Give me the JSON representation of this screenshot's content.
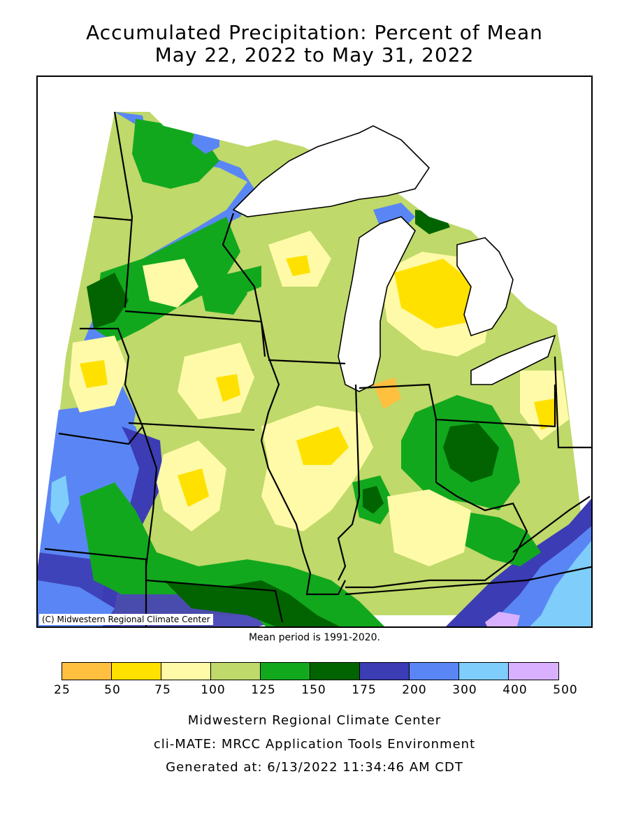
{
  "title": {
    "line1": "Accumulated Precipitation: Percent of Mean",
    "line2": "May 22, 2022 to May 31, 2022"
  },
  "map": {
    "copyright": "(C) Midwestern Regional Climate Center",
    "mean_note": "Mean period is 1991-2020."
  },
  "legend": {
    "bins": [
      {
        "from": "25",
        "to": "50",
        "color": "#ffbf3f"
      },
      {
        "from": "50",
        "to": "75",
        "color": "#ffe100"
      },
      {
        "from": "75",
        "to": "100",
        "color": "#fffaa8"
      },
      {
        "from": "100",
        "to": "125",
        "color": "#bfd96a"
      },
      {
        "from": "125",
        "to": "150",
        "color": "#12a81e"
      },
      {
        "from": "150",
        "to": "175",
        "color": "#016400"
      },
      {
        "from": "175",
        "to": "200",
        "color": "#3c3cb4"
      },
      {
        "from": "200",
        "to": "300",
        "color": "#5a86f5"
      },
      {
        "from": "300",
        "to": "400",
        "color": "#7fcdfa"
      },
      {
        "from": "400",
        "to": "500",
        "color": "#d8b0ff"
      }
    ],
    "ticks": [
      "25",
      "50",
      "75",
      "100",
      "125",
      "150",
      "175",
      "200",
      "300",
      "400",
      "500"
    ]
  },
  "footer": {
    "line1": "Midwestern Regional Climate Center",
    "line2": "cli-MATE: MRCC Application Tools Environment",
    "line3": "Generated at: 6/13/2022 11:34:46 AM CDT"
  }
}
